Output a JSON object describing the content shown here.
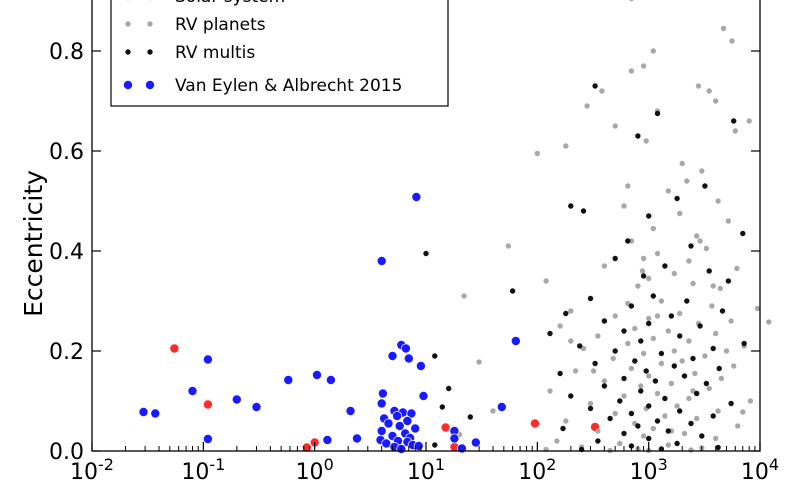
{
  "chart_data": {
    "type": "scatter",
    "title": "",
    "xlabel": "",
    "ylabel": "Eccentricity",
    "xscale": "log",
    "xlim": [
      0.01,
      10000
    ],
    "ylim": [
      0.0,
      0.95
    ],
    "grid": false,
    "legend_position": "top-left",
    "x_ticks": [
      {
        "value": 0.01,
        "base": "10",
        "exp": "-2"
      },
      {
        "value": 0.1,
        "base": "10",
        "exp": "-1"
      },
      {
        "value": 1,
        "base": "10",
        "exp": "0"
      },
      {
        "value": 10,
        "base": "10",
        "exp": "1"
      },
      {
        "value": 100,
        "base": "10",
        "exp": "2"
      },
      {
        "value": 1000,
        "base": "10",
        "exp": "3"
      },
      {
        "value": 10000,
        "base": "10",
        "exp": "4"
      }
    ],
    "y_ticks": [
      {
        "value": 0.0,
        "label": "0.0"
      },
      {
        "value": 0.2,
        "label": "0.2"
      },
      {
        "value": 0.4,
        "label": "0.4"
      },
      {
        "value": 0.6,
        "label": "0.6"
      },
      {
        "value": 0.8,
        "label": "0.8"
      }
    ],
    "series": [
      {
        "name": "Solar system",
        "color": "#ff2a2a",
        "legend_label": "Solar system",
        "points": [
          [
            0.055,
            0.205
          ],
          [
            0.11,
            0.093
          ],
          [
            0.85,
            0.007
          ],
          [
            1.0,
            0.017
          ],
          [
            15,
            0.047
          ],
          [
            18,
            0.008
          ],
          [
            95,
            0.055
          ],
          [
            330,
            0.048
          ]
        ]
      },
      {
        "name": "RV planets",
        "color": "#a8a8a8",
        "legend_label": "RV planets",
        "points": [
          [
            700,
            0.905
          ],
          [
            1600,
            0.935
          ],
          [
            4700,
            0.845
          ],
          [
            5600,
            0.82
          ],
          [
            1100,
            0.8
          ],
          [
            900,
            0.77
          ],
          [
            700,
            0.76
          ],
          [
            2800,
            0.73
          ],
          [
            380,
            0.72
          ],
          [
            3500,
            0.72
          ],
          [
            4000,
            0.7
          ],
          [
            280,
            0.69
          ],
          [
            1200,
            0.68
          ],
          [
            8000,
            0.66
          ],
          [
            500,
            0.65
          ],
          [
            6000,
            0.64
          ],
          [
            950,
            0.62
          ],
          [
            180,
            0.61
          ],
          [
            100,
            0.595
          ],
          [
            2000,
            0.575
          ],
          [
            3000,
            0.56
          ],
          [
            2200,
            0.54
          ],
          [
            1500,
            0.52
          ],
          [
            4200,
            0.5
          ],
          [
            600,
            0.49
          ],
          [
            1900,
            0.475
          ],
          [
            5200,
            0.46
          ],
          [
            1100,
            0.445
          ],
          [
            2700,
            0.43
          ],
          [
            700,
            0.42
          ],
          [
            55,
            0.41
          ],
          [
            3300,
            0.405
          ],
          [
            1200,
            0.395
          ],
          [
            900,
            0.385
          ],
          [
            2300,
            0.38
          ],
          [
            400,
            0.37
          ],
          [
            6200,
            0.365
          ],
          [
            1700,
            0.355
          ],
          [
            1000,
            0.345
          ],
          [
            120,
            0.34
          ],
          [
            2500,
            0.335
          ],
          [
            800,
            0.33
          ],
          [
            4400,
            0.325
          ],
          [
            22,
            0.31
          ],
          [
            300,
            0.305
          ],
          [
            1300,
            0.3
          ],
          [
            650,
            0.295
          ],
          [
            3700,
            0.29
          ],
          [
            9500,
            0.285
          ],
          [
            200,
            0.28
          ],
          [
            1900,
            0.275
          ],
          [
            500,
            0.27
          ],
          [
            1000,
            0.265
          ],
          [
            5500,
            0.26
          ],
          [
            12000,
            0.258
          ],
          [
            2800,
            0.255
          ],
          [
            160,
            0.25
          ],
          [
            750,
            0.245
          ],
          [
            1500,
            0.24
          ],
          [
            4000,
            0.235
          ],
          [
            350,
            0.23
          ],
          [
            1100,
            0.225
          ],
          [
            2300,
            0.22
          ],
          [
            650,
            0.215
          ],
          [
            7200,
            0.21
          ],
          [
            260,
            0.205
          ],
          [
            1700,
            0.2
          ],
          [
            900,
            0.195
          ],
          [
            3200,
            0.19
          ],
          [
            480,
            0.185
          ],
          [
            2000,
            0.18
          ],
          [
            30,
            0.178
          ],
          [
            1300,
            0.175
          ],
          [
            5800,
            0.17
          ],
          [
            700,
            0.165
          ],
          [
            220,
            0.16
          ],
          [
            2600,
            0.155
          ],
          [
            1000,
            0.15
          ],
          [
            4500,
            0.145
          ],
          [
            400,
            0.14
          ],
          [
            1600,
            0.135
          ],
          [
            850,
            0.13
          ],
          [
            3500,
            0.125
          ],
          [
            130,
            0.12
          ],
          [
            1200,
            0.115
          ],
          [
            600,
            0.11
          ],
          [
            2300,
            0.105
          ],
          [
            8200,
            0.1
          ],
          [
            300,
            0.095
          ],
          [
            1800,
            0.09
          ],
          [
            950,
            0.085
          ],
          [
            4200,
            0.08
          ],
          [
            40,
            0.08
          ],
          [
            500,
            0.075
          ],
          [
            1400,
            0.07
          ],
          [
            2700,
            0.065
          ],
          [
            180,
            0.06
          ],
          [
            750,
            0.055
          ],
          [
            6300,
            0.05
          ],
          [
            1100,
            0.045
          ],
          [
            350,
            0.04
          ],
          [
            2100,
            0.035
          ],
          [
            20,
            0.033
          ],
          [
            900,
            0.03
          ],
          [
            4000,
            0.025
          ],
          [
            150,
            0.02
          ],
          [
            550,
            0.015
          ],
          [
            1500,
            0.012
          ],
          [
            250,
            0.008
          ],
          [
            3000,
            0.006
          ],
          [
            800,
            0.004
          ],
          [
            120,
            0.003
          ],
          [
            2400,
            0.002
          ],
          [
            1000,
            0.001
          ],
          [
            450,
            0.001
          ],
          [
            7000,
            0.078
          ],
          [
            5000,
            0.2
          ],
          [
            3800,
            0.33
          ],
          [
            650,
            0.53
          ],
          [
            200,
            0.22
          ],
          [
            1200,
            0.27
          ],
          [
            2500,
            0.12
          ],
          [
            320,
            0.16
          ],
          [
            1600,
            0.04
          ],
          [
            880,
            0.36
          ],
          [
            2900,
            0.42
          ]
        ]
      },
      {
        "name": "RV multis",
        "color": "#111111",
        "legend_label": "RV multis",
        "points": [
          [
            330,
            0.73
          ],
          [
            1200,
            0.675
          ],
          [
            5800,
            0.66
          ],
          [
            800,
            0.63
          ],
          [
            3200,
            0.53
          ],
          [
            1800,
            0.505
          ],
          [
            200,
            0.49
          ],
          [
            260,
            0.48
          ],
          [
            1000,
            0.47
          ],
          [
            7000,
            0.435
          ],
          [
            650,
            0.42
          ],
          [
            2400,
            0.41
          ],
          [
            10,
            0.395
          ],
          [
            500,
            0.385
          ],
          [
            1400,
            0.37
          ],
          [
            3500,
            0.36
          ],
          [
            900,
            0.35
          ],
          [
            5200,
            0.34
          ],
          [
            60,
            0.32
          ],
          [
            1100,
            0.31
          ],
          [
            300,
            0.305
          ],
          [
            2200,
            0.3
          ],
          [
            700,
            0.29
          ],
          [
            4600,
            0.28
          ],
          [
            180,
            0.275
          ],
          [
            1600,
            0.27
          ],
          [
            400,
            0.26
          ],
          [
            1000,
            0.255
          ],
          [
            2900,
            0.25
          ],
          [
            600,
            0.24
          ],
          [
            130,
            0.235
          ],
          [
            1900,
            0.23
          ],
          [
            850,
            0.22
          ],
          [
            7200,
            0.215
          ],
          [
            240,
            0.21
          ],
          [
            3800,
            0.205
          ],
          [
            500,
            0.2
          ],
          [
            1300,
            0.195
          ],
          [
            12,
            0.19
          ],
          [
            2500,
            0.185
          ],
          [
            750,
            0.18
          ],
          [
            330,
            0.175
          ],
          [
            1700,
            0.17
          ],
          [
            4300,
            0.165
          ],
          [
            950,
            0.16
          ],
          [
            160,
            0.155
          ],
          [
            2100,
            0.15
          ],
          [
            600,
            0.145
          ],
          [
            1150,
            0.14
          ],
          [
            3300,
            0.135
          ],
          [
            400,
            0.13
          ],
          [
            16,
            0.125
          ],
          [
            850,
            0.12
          ],
          [
            2700,
            0.115
          ],
          [
            200,
            0.11
          ],
          [
            1400,
            0.105
          ],
          [
            550,
            0.1
          ],
          [
            5500,
            0.095
          ],
          [
            1000,
            0.09
          ],
          [
            14,
            0.088
          ],
          [
            300,
            0.085
          ],
          [
            1900,
            0.08
          ],
          [
            700,
            0.075
          ],
          [
            3800,
            0.07
          ],
          [
            25,
            0.068
          ],
          [
            450,
            0.065
          ],
          [
            1200,
            0.06
          ],
          [
            2400,
            0.055
          ],
          [
            800,
            0.05
          ],
          [
            170,
            0.045
          ],
          [
            1500,
            0.04
          ],
          [
            600,
            0.035
          ],
          [
            3000,
            0.03
          ],
          [
            1000,
            0.025
          ],
          [
            350,
            0.02
          ],
          [
            1800,
            0.015
          ],
          [
            12,
            0.012
          ],
          [
            700,
            0.01
          ],
          [
            4200,
            0.007
          ],
          [
            1300,
            0.004
          ],
          [
            250,
            0.003
          ]
        ]
      },
      {
        "name": "Van Eylen & Albrecht 2015",
        "color": "#1a1aff",
        "legend_label": "Van Eylen & Albrecht 2015",
        "points": [
          [
            8.2,
            0.508
          ],
          [
            4.0,
            0.38
          ],
          [
            6.0,
            0.212
          ],
          [
            6.6,
            0.205
          ],
          [
            64,
            0.22
          ],
          [
            0.11,
            0.183
          ],
          [
            5.0,
            0.19
          ],
          [
            7.0,
            0.185
          ],
          [
            9.0,
            0.17
          ],
          [
            0.58,
            0.142
          ],
          [
            1.05,
            0.152
          ],
          [
            1.4,
            0.142
          ],
          [
            0.08,
            0.12
          ],
          [
            4.1,
            0.115
          ],
          [
            9.5,
            0.11
          ],
          [
            0.2,
            0.103
          ],
          [
            0.3,
            0.088
          ],
          [
            0.029,
            0.078
          ],
          [
            0.037,
            0.075
          ],
          [
            2.1,
            0.08
          ],
          [
            4.0,
            0.095
          ],
          [
            48,
            0.088
          ],
          [
            5.2,
            0.08
          ],
          [
            6.2,
            0.077
          ],
          [
            7.4,
            0.075
          ],
          [
            5.5,
            0.07
          ],
          [
            4.2,
            0.065
          ],
          [
            6.8,
            0.06
          ],
          [
            4.6,
            0.055
          ],
          [
            5.8,
            0.05
          ],
          [
            8.0,
            0.045
          ],
          [
            4.0,
            0.04
          ],
          [
            6.5,
            0.035
          ],
          [
            5.0,
            0.03
          ],
          [
            7.2,
            0.026
          ],
          [
            0.11,
            0.024
          ],
          [
            1.3,
            0.022
          ],
          [
            2.4,
            0.025
          ],
          [
            3.9,
            0.022
          ],
          [
            5.6,
            0.02
          ],
          [
            6.8,
            0.018
          ],
          [
            4.4,
            0.015
          ],
          [
            7.6,
            0.012
          ],
          [
            8.6,
            0.01
          ],
          [
            18,
            0.04
          ],
          [
            18,
            0.025
          ],
          [
            28,
            0.017
          ],
          [
            21,
            0.005
          ],
          [
            5.2,
            0.008
          ],
          [
            6.0,
            0.004
          ]
        ]
      }
    ]
  }
}
